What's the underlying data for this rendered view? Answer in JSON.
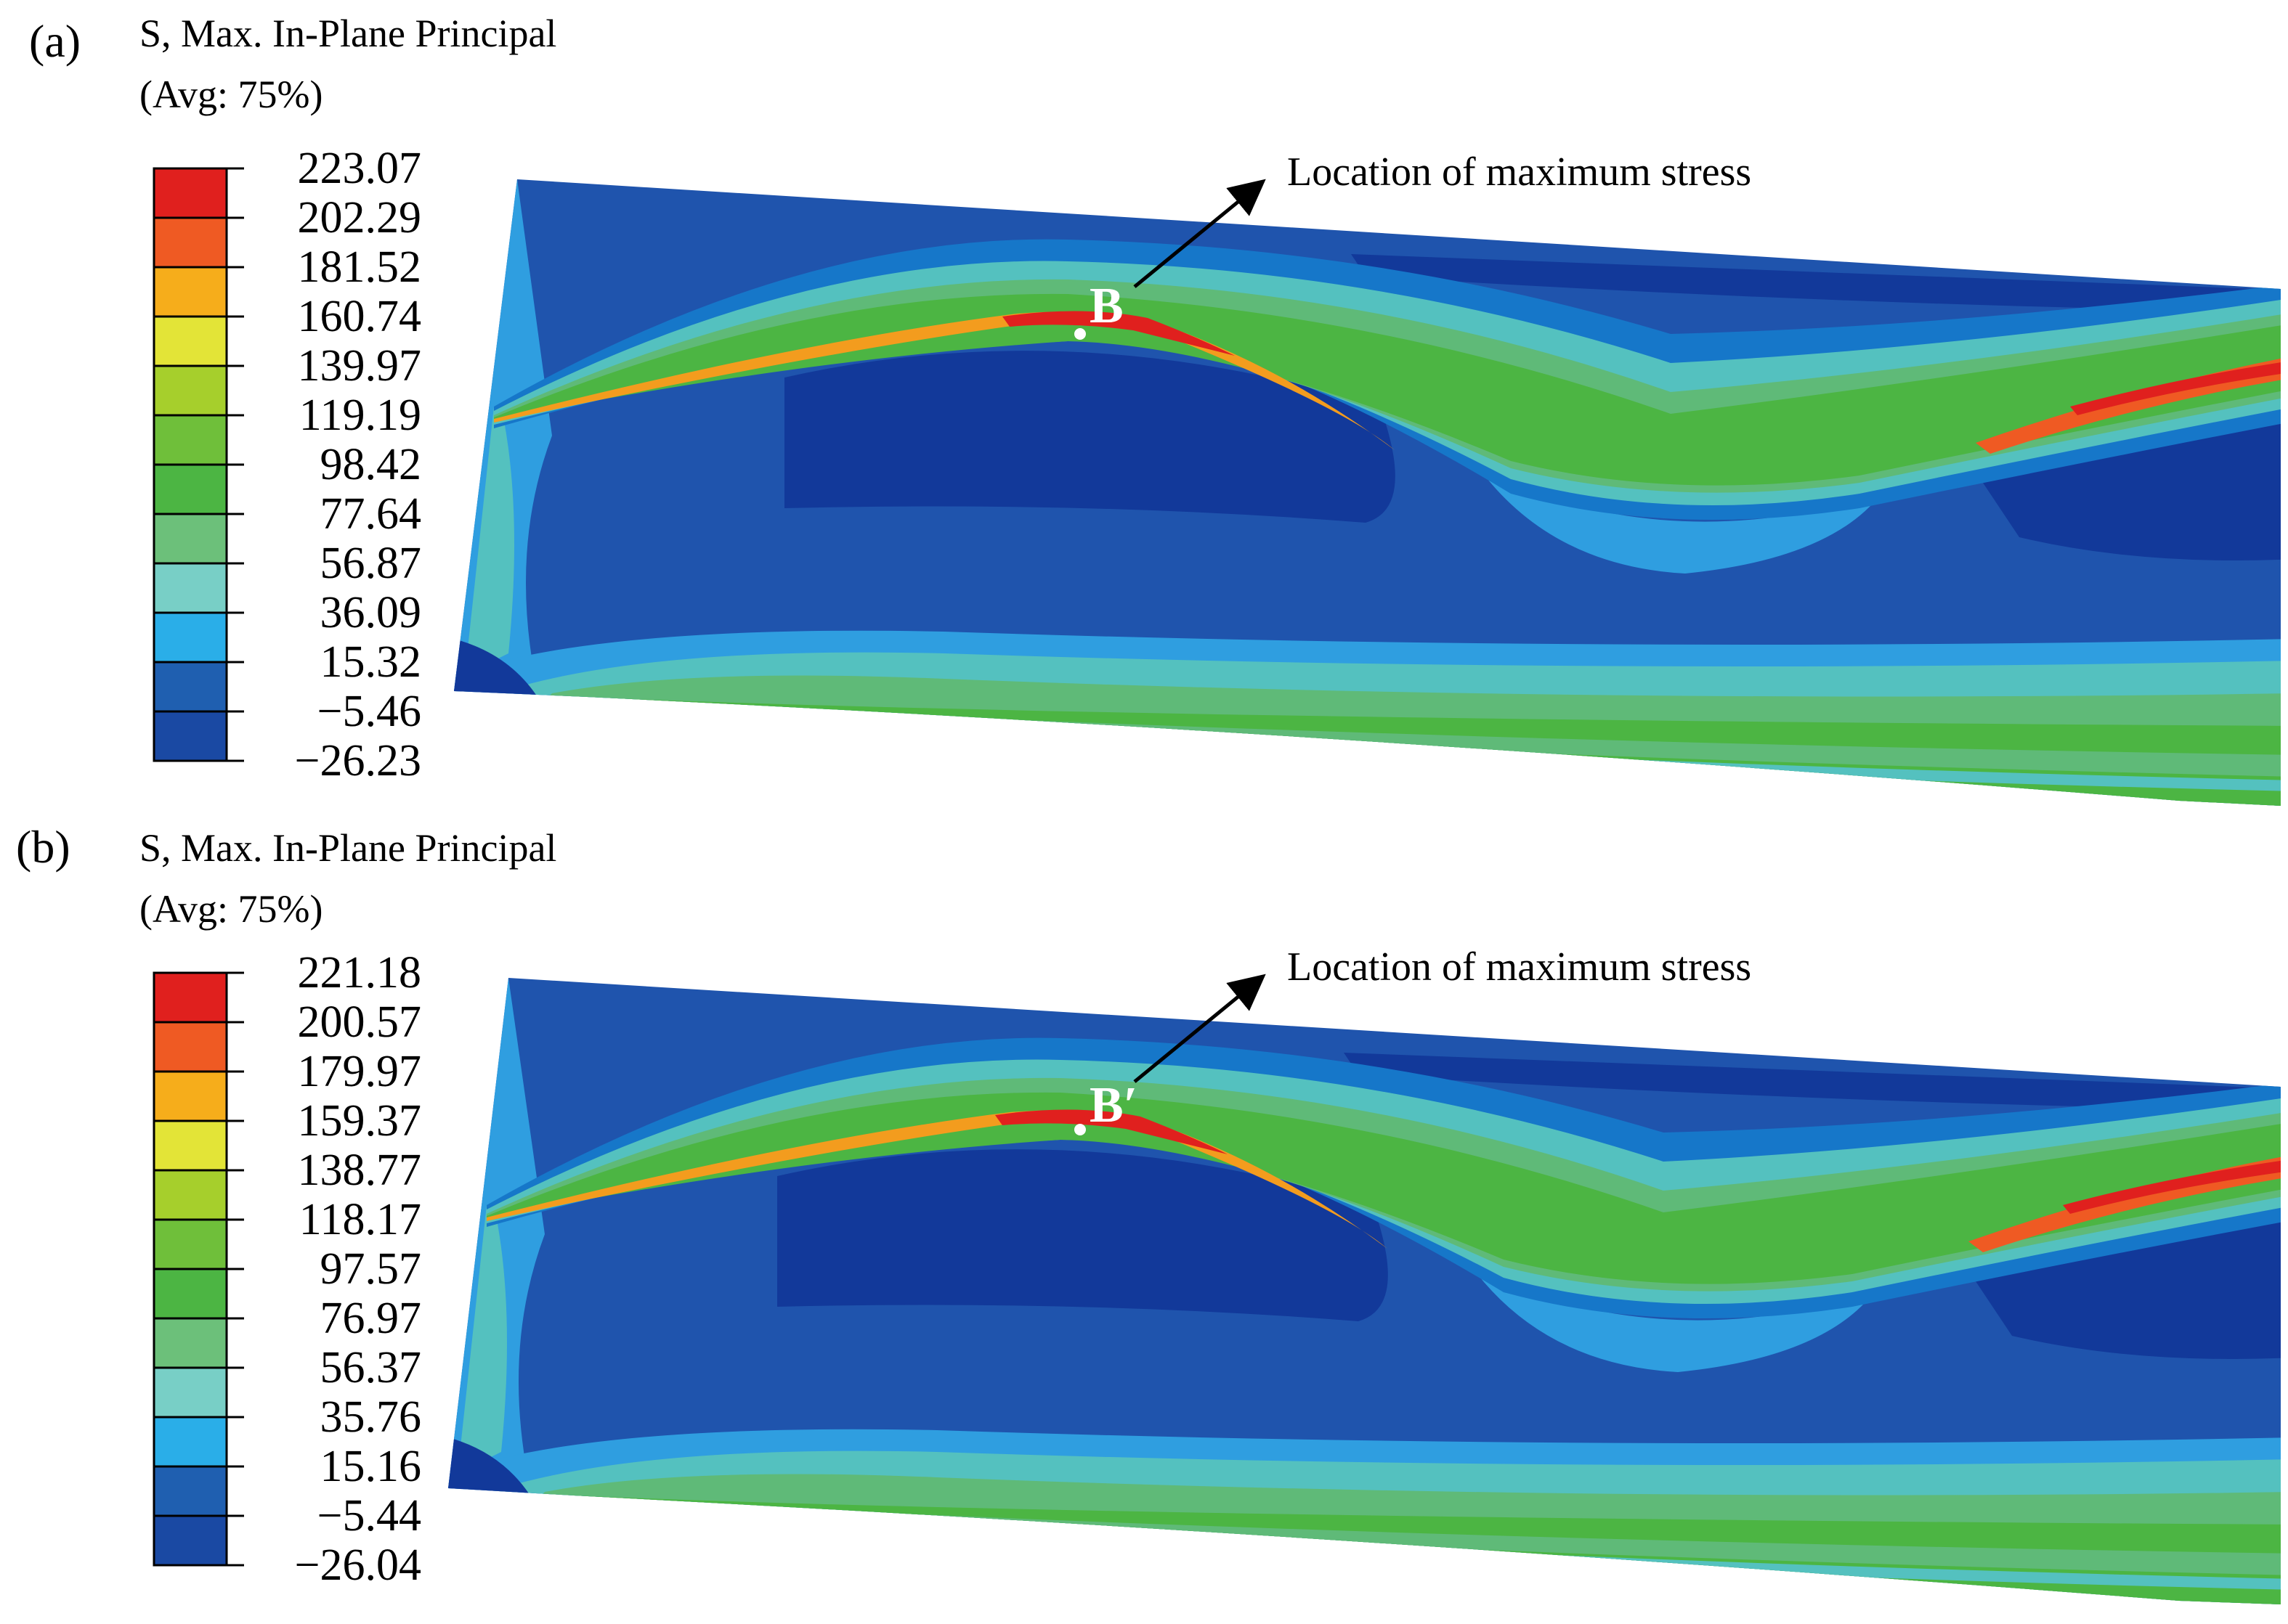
{
  "colors": {
    "background": "#ffffff",
    "deep_blue": "#12399a",
    "blue": "#1f54ad",
    "mid_blue": "#1677c9",
    "light_blue": "#2f9ee0",
    "cyan": "#54c1bf",
    "teal_green": "#5fba78",
    "green": "#4cb543",
    "yellow_green": "#a6cf2c",
    "yellow": "#e3e12a",
    "orange": "#f39c1e",
    "red_orange": "#ef5a23",
    "red": "#e0201e",
    "annotation": "#000000",
    "point_label": "#ffffff"
  },
  "legend_colors": [
    "#e0201e",
    "#ef5a23",
    "#f6ad1b",
    "#e3e437",
    "#a6cf2c",
    "#6fbf3a",
    "#4cb543",
    "#6cc07a",
    "#78cfc6",
    "#2aaee8",
    "#1f5fb0",
    "#1a49a3"
  ],
  "panels": [
    {
      "label": "(a)",
      "title": "S, Max. In-Plane Principal",
      "subtitle": "(Avg: 75%)",
      "legend_values": [
        "223.07",
        "202.29",
        "181.52",
        "160.74",
        "139.97",
        "119.19",
        "98.42",
        "77.64",
        "56.87",
        "36.09",
        "15.32",
        "−5.46",
        "−26.23"
      ],
      "annotation": "Location of maximum stress",
      "point_label": "B"
    },
    {
      "label": "(b)",
      "title": "S, Max. In-Plane Principal",
      "subtitle": "(Avg: 75%)",
      "legend_values": [
        "221.18",
        "200.57",
        "179.97",
        "159.37",
        "138.77",
        "118.17",
        "97.57",
        "76.97",
        "56.37",
        "35.76",
        "15.16",
        "−5.44",
        "−26.04"
      ],
      "annotation": "Location of maximum stress",
      "point_label": "B′"
    }
  ]
}
